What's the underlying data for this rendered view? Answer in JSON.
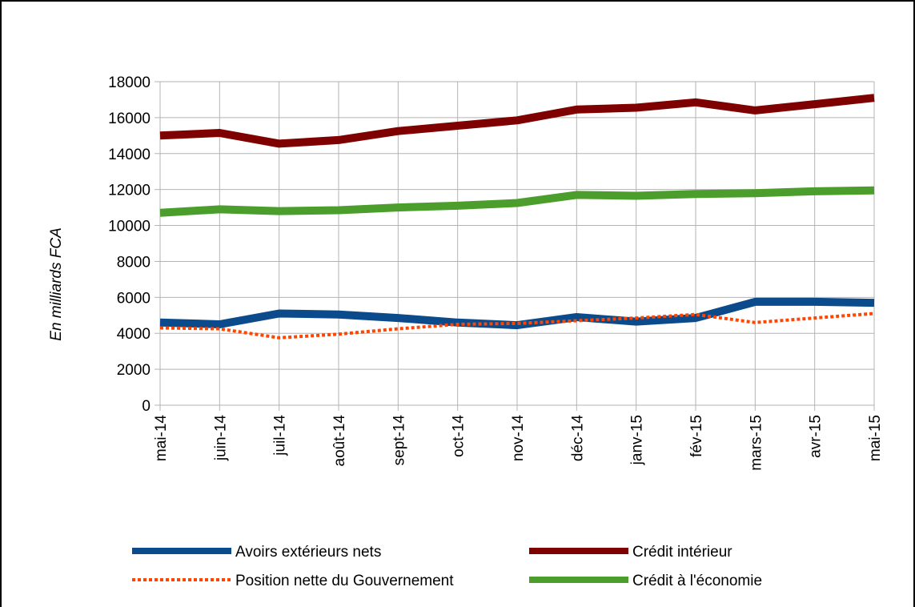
{
  "chart_data": {
    "type": "line",
    "title": "",
    "ylabel": "En milliards FCA",
    "xlabel": "",
    "ylim": [
      0,
      18000
    ],
    "yticks": [
      0,
      2000,
      4000,
      6000,
      8000,
      10000,
      12000,
      14000,
      16000,
      18000
    ],
    "grid": true,
    "legend_position": "bottom",
    "categories": [
      "mai-14",
      "juin-14",
      "juil-14",
      "août-14",
      "sept-14",
      "oct-14",
      "nov-14",
      "déc-14",
      "janv-15",
      "fév-15",
      "mars-15",
      "avr-15",
      "mai-15"
    ],
    "series": [
      {
        "name": "Avoirs extérieurs nets",
        "color": "#0b4a8b",
        "style": "solid",
        "values": [
          4600,
          4500,
          5100,
          5050,
          4850,
          4600,
          4450,
          4900,
          4650,
          4850,
          5750,
          5750,
          5700
        ]
      },
      {
        "name": "Crédit intérieur",
        "color": "#7f0000",
        "style": "solid",
        "values": [
          15000,
          15150,
          14550,
          14750,
          15250,
          15550,
          15850,
          16450,
          16550,
          16850,
          16400,
          16750,
          17100
        ]
      },
      {
        "name": "Position nette du Gouvernement",
        "color": "#ff4500",
        "style": "dotted",
        "values": [
          4300,
          4250,
          3750,
          3950,
          4250,
          4500,
          4550,
          4700,
          4850,
          5050,
          4600,
          4850,
          5100
        ]
      },
      {
        "name": "Crédit à l'économie",
        "color": "#4b9e2c",
        "style": "solid",
        "values": [
          10700,
          10900,
          10800,
          10850,
          11000,
          11100,
          11250,
          11700,
          11650,
          11750,
          11800,
          11900,
          11950
        ]
      }
    ]
  }
}
